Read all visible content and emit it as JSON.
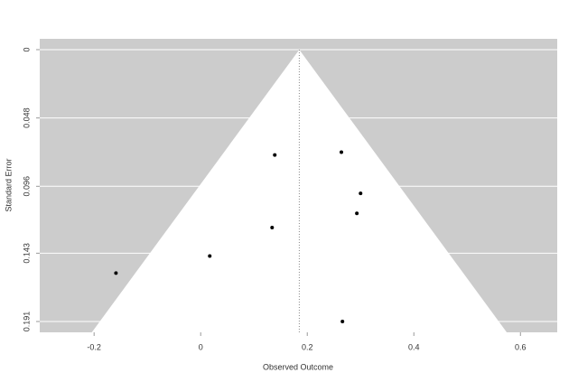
{
  "chart_data": {
    "type": "funnel",
    "x_label": "Observed Outcome",
    "y_label": "Standard Error",
    "x": [
      -0.159,
      0.017,
      0.134,
      0.139,
      0.264,
      0.3,
      0.293,
      0.266
    ],
    "values": [
      0.157,
      0.145,
      0.125,
      0.074,
      0.072,
      0.101,
      0.115,
      0.191
    ],
    "color": "#000000",
    "funnel": {
      "center": 0.185,
      "z": 1.96
    },
    "xlim": [
      -0.302,
      0.669
    ],
    "xticks": [
      {
        "value": -0.2,
        "label": "-0.2"
      },
      0,
      0.2,
      0.4,
      0.6
    ],
    "ylim": [
      -0.0076,
      0.1986
    ],
    "y_reversed": true,
    "yticks": [
      0,
      0.048,
      0.096,
      0.143,
      0.191
    ],
    "grid": true
  }
}
